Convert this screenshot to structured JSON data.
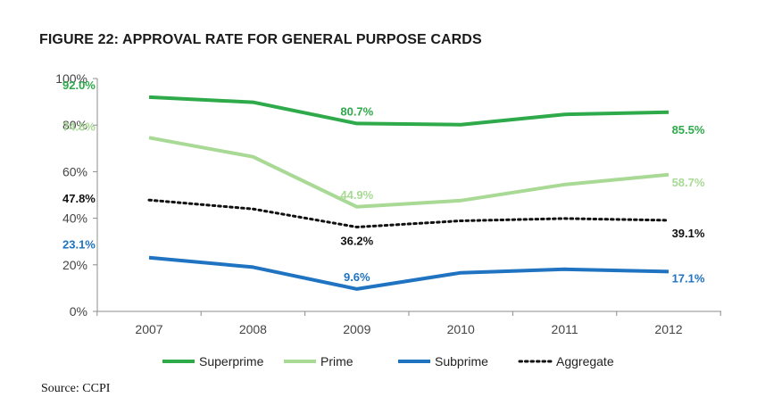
{
  "chart_data": {
    "type": "line",
    "title": "FIGURE 22: APPROVAL RATE FOR GENERAL PURPOSE CARDS",
    "categories": [
      "2007",
      "2008",
      "2009",
      "2010",
      "2011",
      "2012"
    ],
    "y_ticks": [
      "0%",
      "20%",
      "40%",
      "60%",
      "80%",
      "100%"
    ],
    "ylim": [
      0,
      100
    ],
    "grid": false,
    "legend_position": "bottom",
    "series": [
      {
        "name": "Superprime",
        "color": "#2eaa4a",
        "style": "solid",
        "values": [
          92.0,
          89.8,
          80.7,
          80.2,
          84.6,
          85.5
        ],
        "labels": [
          {
            "index": 0,
            "text": "92.0%"
          },
          {
            "index": 2,
            "text": "80.7%"
          },
          {
            "index": 5,
            "text": "85.5%"
          }
        ]
      },
      {
        "name": "Prime",
        "color": "#a8d995",
        "style": "solid",
        "values": [
          74.6,
          66.4,
          44.9,
          47.6,
          54.5,
          58.7
        ],
        "labels": [
          {
            "index": 0,
            "text": "74.6%"
          },
          {
            "index": 2,
            "text": "44.9%"
          },
          {
            "index": 5,
            "text": "58.7%"
          }
        ]
      },
      {
        "name": "Subprime",
        "color": "#1f73c1",
        "style": "solid",
        "values": [
          23.1,
          19.0,
          9.6,
          16.6,
          18.1,
          17.1
        ],
        "labels": [
          {
            "index": 0,
            "text": "23.1%"
          },
          {
            "index": 2,
            "text": "9.6%"
          },
          {
            "index": 5,
            "text": "17.1%"
          }
        ]
      },
      {
        "name": "Aggregate",
        "color": "#111111",
        "style": "dotted",
        "values": [
          47.8,
          44.0,
          36.2,
          38.9,
          39.9,
          39.1
        ],
        "labels": [
          {
            "index": 0,
            "text": "47.8%"
          },
          {
            "index": 2,
            "text": "36.2%"
          },
          {
            "index": 5,
            "text": "39.1%"
          }
        ]
      }
    ]
  },
  "source": "Source: CCPI"
}
